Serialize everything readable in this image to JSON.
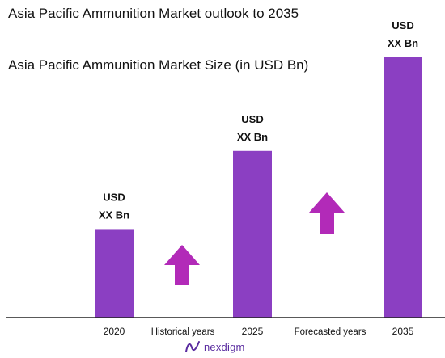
{
  "title": "Asia Pacific Ammunition Market outlook to 2035",
  "subtitle": "Asia Pacific Ammunition Market Size (in USD Bn)",
  "brand": {
    "name": "nexdigm",
    "color": "#5a2ca0"
  },
  "colors": {
    "bar": "#8b3fc2",
    "arrow": "#b22ab8",
    "axis": "#222222"
  },
  "chart_data": {
    "type": "bar",
    "title": "Asia Pacific Ammunition Market Size (in USD Bn)",
    "categories": [
      "2020",
      "2025",
      "2035"
    ],
    "values": [
      3.4,
      6.4,
      10.0
    ],
    "value_labels": [
      [
        "USD",
        "XX Bn"
      ],
      [
        "USD",
        "XX Bn"
      ],
      [
        "USD",
        "XX Bn"
      ]
    ],
    "ylim": [
      0,
      10.8
    ],
    "grid": false,
    "legend": "none",
    "period_labels": [
      "Historical years",
      "Forecasted years"
    ],
    "growth_arrows": 2
  }
}
